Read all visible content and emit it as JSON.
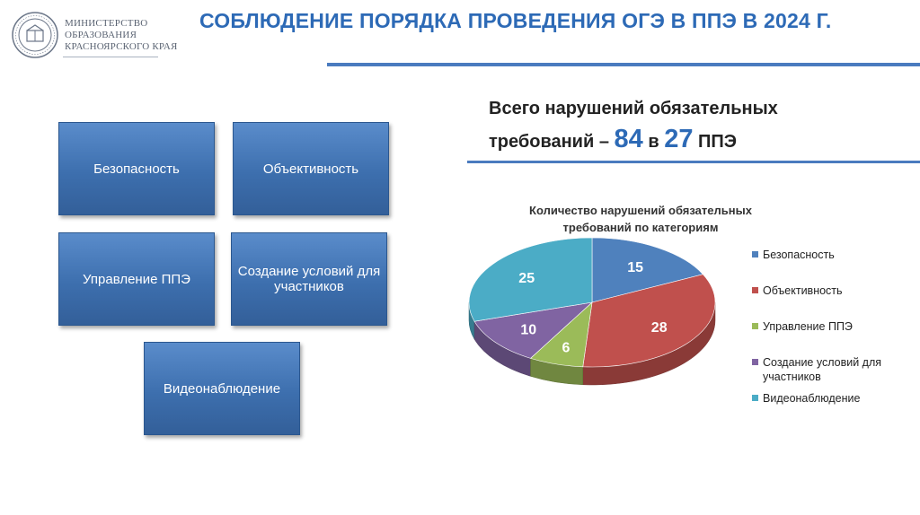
{
  "header": {
    "org_lines": [
      "МИНИСТЕРСТВО",
      "ОБРАЗОВАНИЯ",
      "КРАСНОЯРСКОГО КРАЯ"
    ],
    "title": "СОБЛЮДЕНИЕ ПОРЯДКА ПРОВЕДЕНИЯ ОГЭ В ППЭ В 2024 Г."
  },
  "tiles": [
    "Безопасность",
    "Объективность",
    "Управление ППЭ",
    "Создание условий для участников",
    "Видеонаблюдение"
  ],
  "summary": {
    "line1": "Всего нарушений обязательных",
    "line2_prefix": "требований – ",
    "total": "84",
    "middle": " в ",
    "ppe_count": "27",
    "suffix": " ППЭ"
  },
  "chart_data": {
    "type": "pie",
    "title_lines": [
      "Количество нарушений обязательных",
      "требований по категориям"
    ],
    "categories": [
      "Безопасность",
      "Объективность",
      "Управление ППЭ",
      "Создание условий для участников",
      "Видеонаблюдение"
    ],
    "values": [
      15,
      28,
      6,
      10,
      25
    ],
    "colors": [
      "#4f81bd",
      "#c0504d",
      "#9bbb59",
      "#8064a2",
      "#4bacc6"
    ],
    "legend_position": "right",
    "style": "3d"
  }
}
